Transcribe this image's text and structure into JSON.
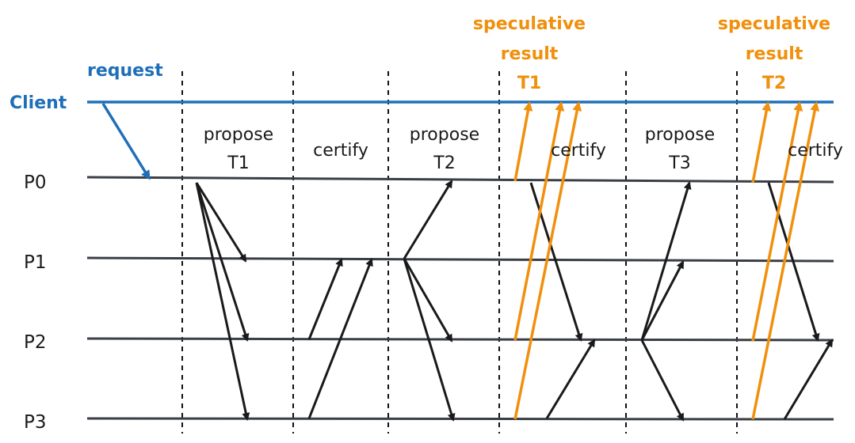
{
  "lanes": {
    "client": "Client",
    "p0": "P0",
    "p1": "P1",
    "p2": "P2",
    "p3": "P3"
  },
  "labels": {
    "request": "request",
    "propose_t1_a": "propose",
    "propose_t1_b": "T1",
    "certify_1": "certify",
    "propose_t2_a": "propose",
    "propose_t2_b": "T2",
    "spec1_a": "speculative",
    "spec1_b": "result",
    "spec1_c": "T1",
    "certify_2": "certify",
    "propose_t3_a": "propose",
    "propose_t3_b": "T3",
    "spec2_a": "speculative",
    "spec2_b": "result",
    "spec2_c": "T2",
    "certify_3": "certify"
  },
  "colors": {
    "client_line": "#1f6fb8",
    "process_line": "#3a3f47",
    "message_arrow": "#1a1a1a",
    "speculative_arrow": "#f0900c",
    "phase_divider": "#111111"
  }
}
